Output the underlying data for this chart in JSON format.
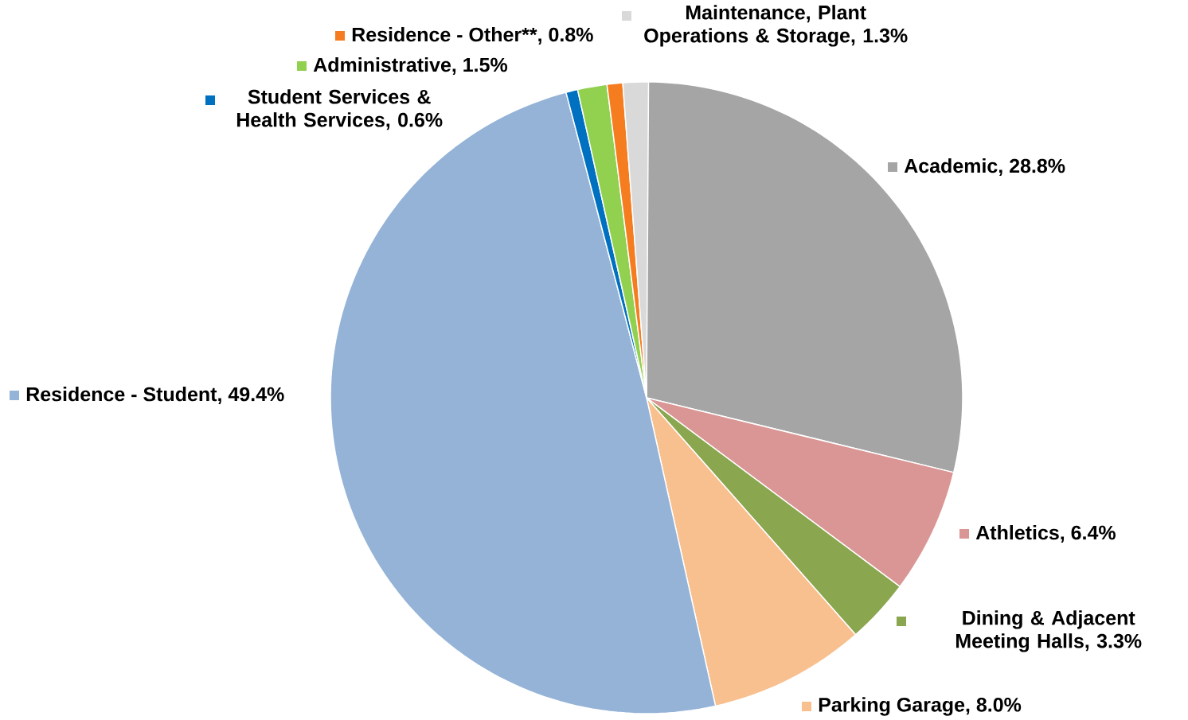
{
  "chart_data": {
    "type": "pie",
    "categories": [
      "Academic, 28.8%",
      "Athletics, 6.4%",
      "Dining & Adjacent Meeting Halls, 3.3%",
      "Parking Garage, 8.0%",
      "Residence - Student, 49.4%",
      "Student Services & Health Services, 0.6%",
      "Administrative, 1.5%",
      "Residence - Other**, 0.8%",
      "Maintenance, Plant Operations & Storage, 1.3%"
    ],
    "legend": "top left",
    "values": [
      28.8,
      6.4,
      3.3,
      8.0,
      49.4,
      0.6,
      1.5,
      0.8,
      1.3
    ],
    "colors": [
      "#a5a5a5",
      "#d99694",
      "#8aa64f",
      "#f9c08f",
      "#95b3d7",
      "#0070c0",
      "#92d050",
      "#f57c1f",
      "#d9d9d9"
    ]
  }
}
